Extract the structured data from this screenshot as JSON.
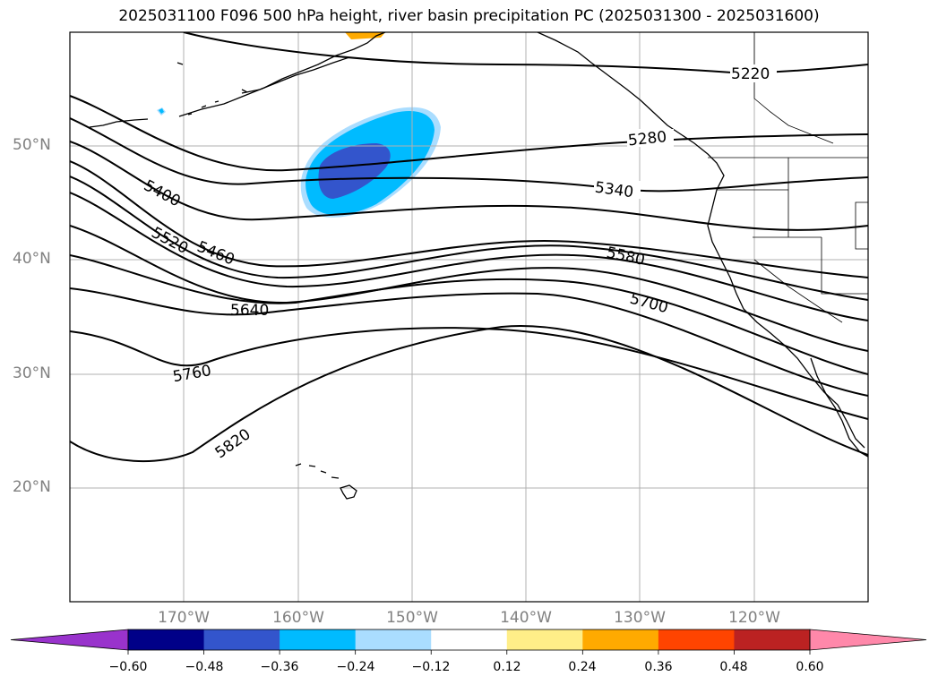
{
  "title": "2025031100 F096 500 hPa height, river basin precipitation PC (2025031300 - 2025031600)",
  "lat_labels": [
    "50°N",
    "40°N",
    "30°N",
    "20°N"
  ],
  "lon_labels": [
    "170°W",
    "160°W",
    "150°W",
    "140°W",
    "130°W",
    "120°W"
  ],
  "contour_labels": [
    "5220",
    "5280",
    "5340",
    "5400",
    "5460",
    "5520",
    "5580",
    "5640",
    "5700",
    "5760",
    "5820"
  ],
  "colorbar": {
    "ticks": [
      "−0.60",
      "−0.48",
      "−0.36",
      "−0.24",
      "−0.12",
      "0.12",
      "0.24",
      "0.36",
      "0.48",
      "0.60"
    ],
    "colors": [
      "#9933cc",
      "#000088",
      "#3355cc",
      "#00bbff",
      "#aaddff",
      "#ffffff",
      "#ffee88",
      "#ffaa00",
      "#ff4400",
      "#bb2222",
      "#ff88aa"
    ]
  }
}
